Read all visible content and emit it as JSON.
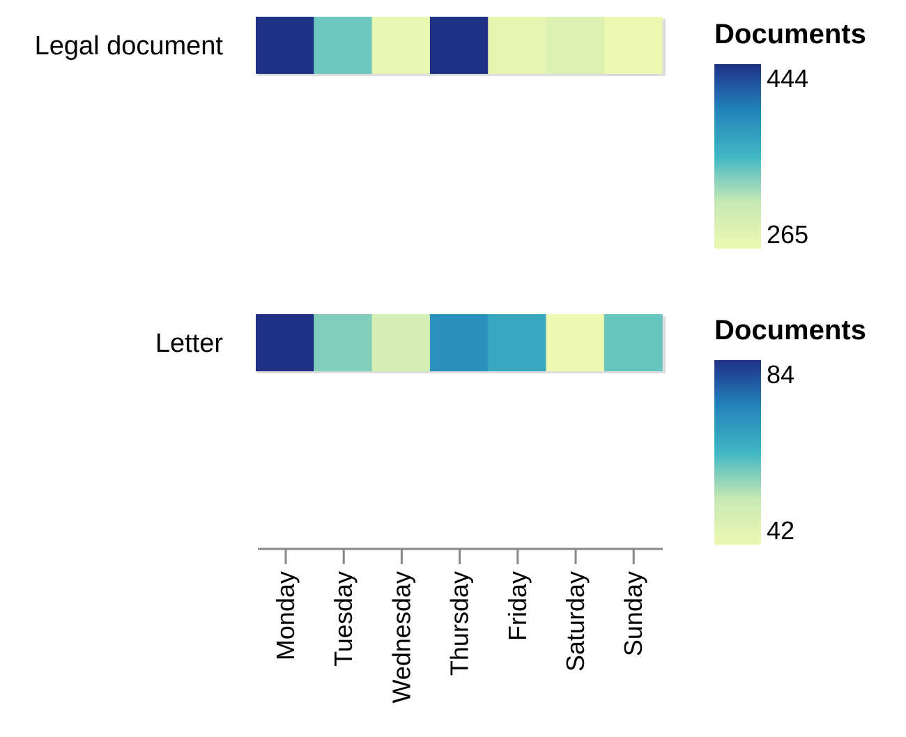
{
  "chart_data": {
    "type": "heatmap",
    "x": [
      "Monday",
      "Tuesday",
      "Wednesday",
      "Thursday",
      "Friday",
      "Saturday",
      "Sunday"
    ],
    "color_scale": {
      "name": "YlGnBu",
      "low": "#edf8b1",
      "mid": "#41b6c4",
      "high": "#1f3185"
    },
    "rows": [
      {
        "label": "Legal document",
        "values": [
          444,
          340,
          270,
          444,
          273,
          285,
          266
        ],
        "legend": {
          "title": "Documents",
          "min": 265,
          "max": 444,
          "min_label": "265",
          "max_label": "444"
        }
      },
      {
        "label": "Letter",
        "values": [
          84,
          58,
          49,
          71,
          66,
          42,
          60
        ],
        "legend": {
          "title": "Documents",
          "min": 42,
          "max": 84,
          "min_label": "42",
          "max_label": "84"
        }
      }
    ]
  }
}
